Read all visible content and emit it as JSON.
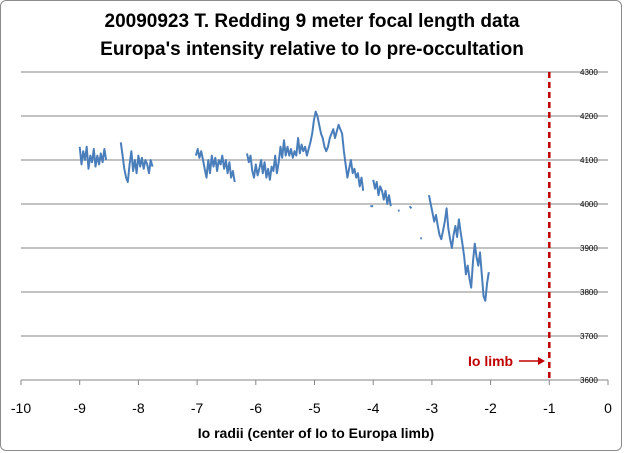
{
  "chart_data": {
    "type": "line",
    "title_line1": "20090923 T. Redding 9 meter focal length data",
    "title_line2": "Europa's intensity relative to Io pre-occultation",
    "xlabel": "Io radii (center of Io to Europa limb)",
    "ylabel": "",
    "xlim": [
      -10,
      0
    ],
    "ylim": [
      3600,
      4300
    ],
    "x_ticks": [
      "-10",
      "-9",
      "-8",
      "-7",
      "-6",
      "-5",
      "-4",
      "-3",
      "-2",
      "-1",
      "0"
    ],
    "y_ticks": [
      "3600",
      "3700",
      "3800",
      "3900",
      "4000",
      "4100",
      "4200",
      "4300"
    ],
    "y_axis_side": "right",
    "grid": "horizontal",
    "series_color": "#4a7ebb",
    "reference_line": {
      "x": -1,
      "label": "Io limb",
      "color": "#c00000",
      "style": "dashed"
    },
    "series": [
      {
        "segments": [
          [
            [
              -9.0,
              4130
            ],
            [
              -8.97,
              4090
            ],
            [
              -8.94,
              4120
            ],
            [
              -8.91,
              4100
            ],
            [
              -8.88,
              4130
            ],
            [
              -8.85,
              4080
            ],
            [
              -8.82,
              4110
            ],
            [
              -8.79,
              4095
            ],
            [
              -8.76,
              4125
            ],
            [
              -8.73,
              4085
            ],
            [
              -8.7,
              4110
            ],
            [
              -8.67,
              4090
            ],
            [
              -8.64,
              4115
            ],
            [
              -8.61,
              4095
            ],
            [
              -8.58,
              4125
            ],
            [
              -8.55,
              4100
            ]
          ],
          [
            [
              -8.3,
              4140
            ],
            [
              -8.27,
              4110
            ],
            [
              -8.24,
              4080
            ],
            [
              -8.21,
              4060
            ],
            [
              -8.18,
              4050
            ],
            [
              -8.15,
              4090
            ],
            [
              -8.12,
              4120
            ],
            [
              -8.09,
              4075
            ],
            [
              -8.06,
              4100
            ],
            [
              -8.03,
              4070
            ],
            [
              -8.0,
              4110
            ],
            [
              -7.97,
              4085
            ],
            [
              -7.94,
              4105
            ],
            [
              -7.91,
              4080
            ],
            [
              -7.88,
              4100
            ],
            [
              -7.85,
              4090
            ],
            [
              -7.82,
              4070
            ],
            [
              -7.79,
              4100
            ],
            [
              -7.76,
              4085
            ]
          ],
          [
            [
              -7.02,
              4110
            ],
            [
              -6.99,
              4125
            ],
            [
              -6.96,
              4105
            ],
            [
              -6.93,
              4120
            ],
            [
              -6.9,
              4100
            ],
            [
              -6.87,
              4080
            ],
            [
              -6.84,
              4060
            ],
            [
              -6.81,
              4100
            ],
            [
              -6.78,
              4070
            ],
            [
              -6.75,
              4110
            ],
            [
              -6.72,
              4085
            ],
            [
              -6.69,
              4105
            ],
            [
              -6.66,
              4075
            ],
            [
              -6.63,
              4100
            ],
            [
              -6.6,
              4090
            ],
            [
              -6.57,
              4110
            ],
            [
              -6.54,
              4080
            ],
            [
              -6.51,
              4100
            ],
            [
              -6.48,
              4070
            ],
            [
              -6.45,
              4095
            ],
            [
              -6.42,
              4060
            ],
            [
              -6.39,
              4075
            ],
            [
              -6.36,
              4050
            ]
          ],
          [
            [
              -6.15,
              4115
            ],
            [
              -6.12,
              4095
            ],
            [
              -6.09,
              4110
            ],
            [
              -6.06,
              4075
            ],
            [
              -6.03,
              4060
            ],
            [
              -6.0,
              4090
            ],
            [
              -5.97,
              4065
            ],
            [
              -5.94,
              4080
            ],
            [
              -5.91,
              4100
            ],
            [
              -5.88,
              4070
            ],
            [
              -5.85,
              4095
            ],
            [
              -5.82,
              4060
            ],
            [
              -5.79,
              4080
            ],
            [
              -5.76,
              4055
            ],
            [
              -5.73,
              4085
            ],
            [
              -5.7,
              4075
            ],
            [
              -5.67,
              4110
            ],
            [
              -5.64,
              4070
            ],
            [
              -5.61,
              4095
            ],
            [
              -5.58,
              4130
            ],
            [
              -5.55,
              4105
            ],
            [
              -5.52,
              4145
            ],
            [
              -5.49,
              4110
            ],
            [
              -5.46,
              4130
            ],
            [
              -5.43,
              4110
            ],
            [
              -5.4,
              4125
            ],
            [
              -5.37,
              4105
            ],
            [
              -5.34,
              4120
            ],
            [
              -5.31,
              4110
            ],
            [
              -5.28,
              4150
            ],
            [
              -5.25,
              4115
            ],
            [
              -5.22,
              4135
            ],
            [
              -5.19,
              4120
            ],
            [
              -5.16,
              4130
            ],
            [
              -5.13,
              4110
            ],
            [
              -5.1,
              4125
            ],
            [
              -5.07,
              4140
            ],
            [
              -5.04,
              4160
            ],
            [
              -5.01,
              4190
            ],
            [
              -4.98,
              4210
            ],
            [
              -4.95,
              4200
            ],
            [
              -4.92,
              4180
            ],
            [
              -4.89,
              4160
            ],
            [
              -4.86,
              4150
            ],
            [
              -4.83,
              4130
            ],
            [
              -4.8,
              4120
            ],
            [
              -4.77,
              4130
            ],
            [
              -4.74,
              4150
            ],
            [
              -4.71,
              4160
            ],
            [
              -4.68,
              4170
            ],
            [
              -4.65,
              4150
            ],
            [
              -4.62,
              4165
            ],
            [
              -4.59,
              4180
            ],
            [
              -4.56,
              4170
            ],
            [
              -4.53,
              4160
            ],
            [
              -4.5,
              4120
            ],
            [
              -4.47,
              4090
            ],
            [
              -4.44,
              4060
            ],
            [
              -4.41,
              4080
            ],
            [
              -4.38,
              4100
            ],
            [
              -4.35,
              4070
            ],
            [
              -4.32,
              4080
            ],
            [
              -4.29,
              4060
            ],
            [
              -4.26,
              4070
            ],
            [
              -4.23,
              4040
            ],
            [
              -4.2,
              4060
            ],
            [
              -4.17,
              4030
            ]
          ],
          [
            [
              -4.0,
              4055
            ],
            [
              -3.97,
              4035
            ],
            [
              -3.94,
              4050
            ],
            [
              -3.91,
              4020
            ],
            [
              -3.88,
              4040
            ],
            [
              -3.85,
              4030
            ],
            [
              -3.82,
              4010
            ],
            [
              -3.79,
              4030
            ],
            [
              -3.76,
              4000
            ],
            [
              -3.73,
              4020
            ],
            [
              -3.7,
              3995
            ]
          ],
          [
            [
              -3.05,
              4020
            ],
            [
              -3.02,
              4000
            ],
            [
              -2.99,
              3980
            ],
            [
              -2.96,
              3960
            ],
            [
              -2.93,
              3975
            ],
            [
              -2.9,
              3950
            ],
            [
              -2.87,
              3930
            ],
            [
              -2.84,
              3920
            ],
            [
              -2.81,
              3940
            ],
            [
              -2.78,
              3960
            ],
            [
              -2.75,
              3990
            ],
            [
              -2.72,
              3945
            ],
            [
              -2.69,
              3920
            ],
            [
              -2.66,
              3900
            ],
            [
              -2.63,
              3930
            ],
            [
              -2.6,
              3950
            ],
            [
              -2.57,
              3925
            ],
            [
              -2.54,
              3965
            ],
            [
              -2.51,
              3935
            ],
            [
              -2.48,
              3910
            ],
            [
              -2.45,
              3880
            ],
            [
              -2.42,
              3840
            ],
            [
              -2.39,
              3860
            ],
            [
              -2.36,
              3830
            ],
            [
              -2.33,
              3810
            ],
            [
              -2.3,
              3870
            ],
            [
              -2.27,
              3910
            ],
            [
              -2.24,
              3880
            ],
            [
              -2.21,
              3860
            ],
            [
              -2.18,
              3890
            ],
            [
              -2.15,
              3840
            ],
            [
              -2.12,
              3790
            ],
            [
              -2.09,
              3780
            ],
            [
              -2.06,
              3820
            ],
            [
              -2.03,
              3845
            ]
          ],
          [
            [
              -4.05,
              3995
            ],
            [
              -4.0,
              3995
            ]
          ],
          [
            [
              -3.58,
              3985
            ],
            [
              -3.55,
              3985
            ]
          ],
          [
            [
              -3.38,
              3995
            ],
            [
              -3.35,
              3990
            ]
          ],
          [
            [
              -3.2,
              3922
            ],
            [
              -3.17,
              3922
            ]
          ]
        ]
      }
    ]
  }
}
